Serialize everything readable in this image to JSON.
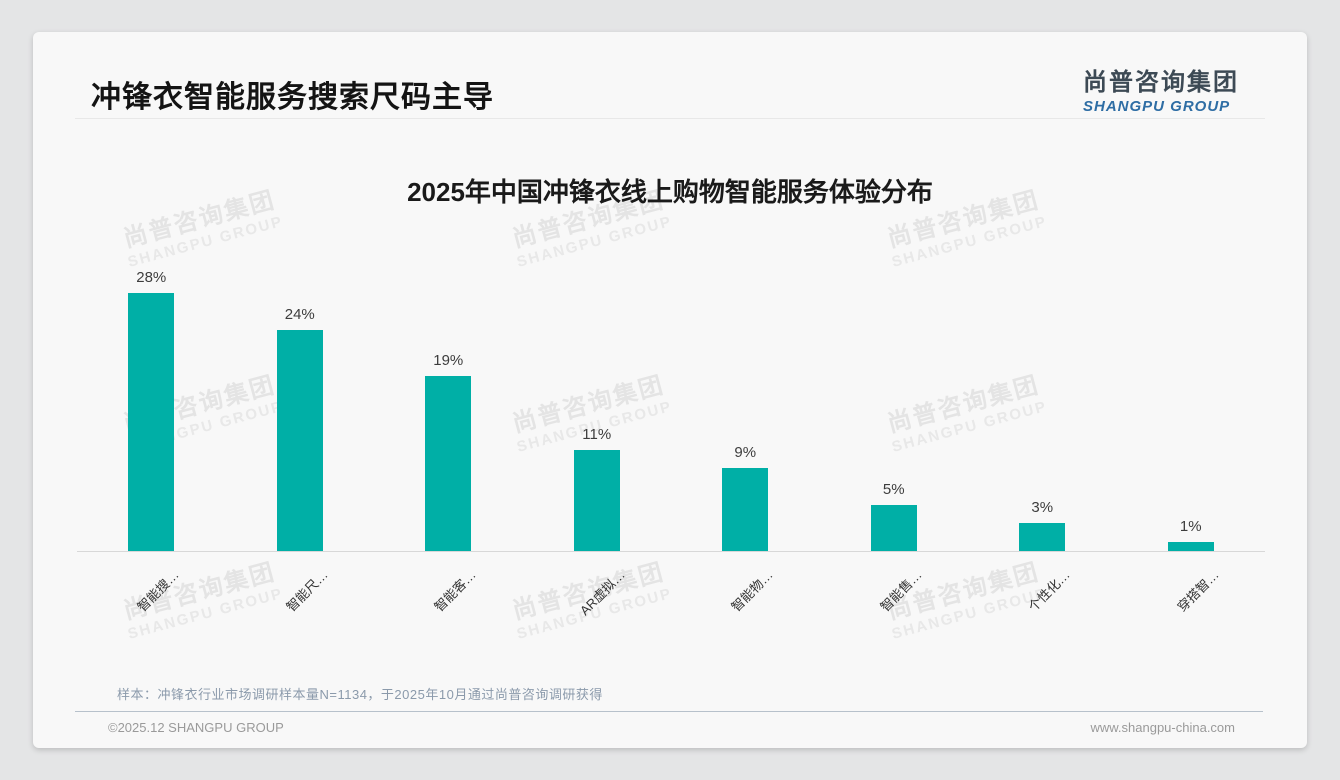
{
  "page": {
    "title": "冲锋衣智能服务搜索尺码主导",
    "logo": {
      "cn": "尚普咨询集团",
      "en": "SHANGPU GROUP",
      "cn_color": "#3d4a55",
      "en_color": "#2e6da4"
    },
    "watermark": {
      "line1": "尚普咨询集团",
      "line2": "SHANGPU GROUP"
    },
    "note": "样本：冲锋衣行业市场调研样本量N=1134，于2025年10月通过尚普咨询调研获得",
    "footer": {
      "left": "©2025.12 SHANGPU GROUP",
      "right": "www.shangpu-china.com"
    }
  },
  "chart_data": {
    "type": "bar",
    "title": "2025年中国冲锋衣线上购物智能服务体验分布",
    "categories": [
      "智能搜…",
      "智能尺…",
      "智能客…",
      "AR虚拟…",
      "智能物…",
      "智能售…",
      "个性化…",
      "穿搭智…"
    ],
    "values": [
      28,
      24,
      19,
      11,
      9,
      5,
      3,
      1
    ],
    "unit": "%",
    "data_labels": [
      "28%",
      "24%",
      "19%",
      "11%",
      "9%",
      "5%",
      "3%",
      "1%"
    ],
    "bar_color": "#00AFA6",
    "ylim": [
      0,
      30
    ],
    "grid": false,
    "legend": "none",
    "x_tick_rotation": 45
  }
}
